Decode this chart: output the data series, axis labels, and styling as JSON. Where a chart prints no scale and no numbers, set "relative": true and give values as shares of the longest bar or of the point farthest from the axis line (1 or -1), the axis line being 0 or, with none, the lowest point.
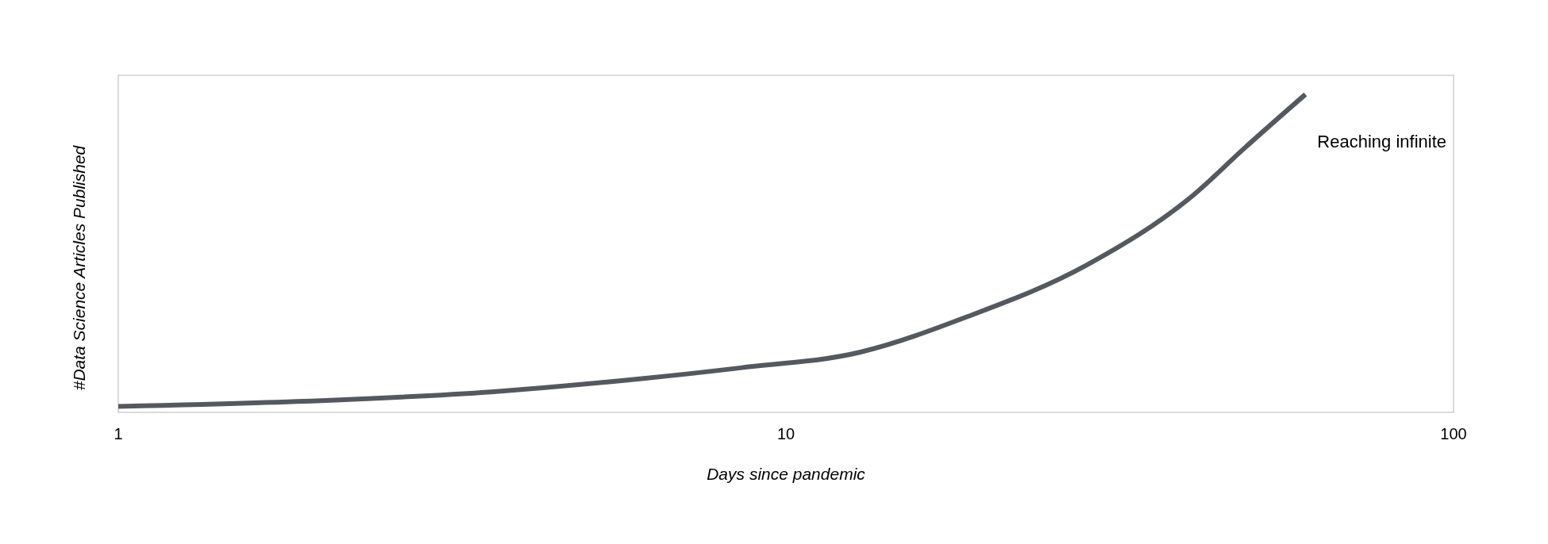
{
  "chart_data": {
    "type": "line",
    "relative": true,
    "xlabel": "Days since pandemic",
    "ylabel": "#Data Science Articles Published",
    "x": [
      1,
      1.85,
      3.65,
      6.08,
      8.55,
      12.9,
      18.7,
      28.2,
      40.9,
      48.5,
      60
    ],
    "series": [
      {
        "color": "#54585f",
        "values": [
          0.019,
          0.034,
          0.065,
          0.106,
          0.14,
          0.189,
          0.301,
          0.463,
          0.686,
          0.829,
          1
        ]
      }
    ],
    "xlim": [
      1,
      100
    ],
    "xticks": [
      1,
      10,
      100
    ],
    "log": "x",
    "grid": false,
    "legend": false,
    "marker": "none",
    "line_style": "solid",
    "annotations": [
      "Reaching infinite"
    ]
  }
}
